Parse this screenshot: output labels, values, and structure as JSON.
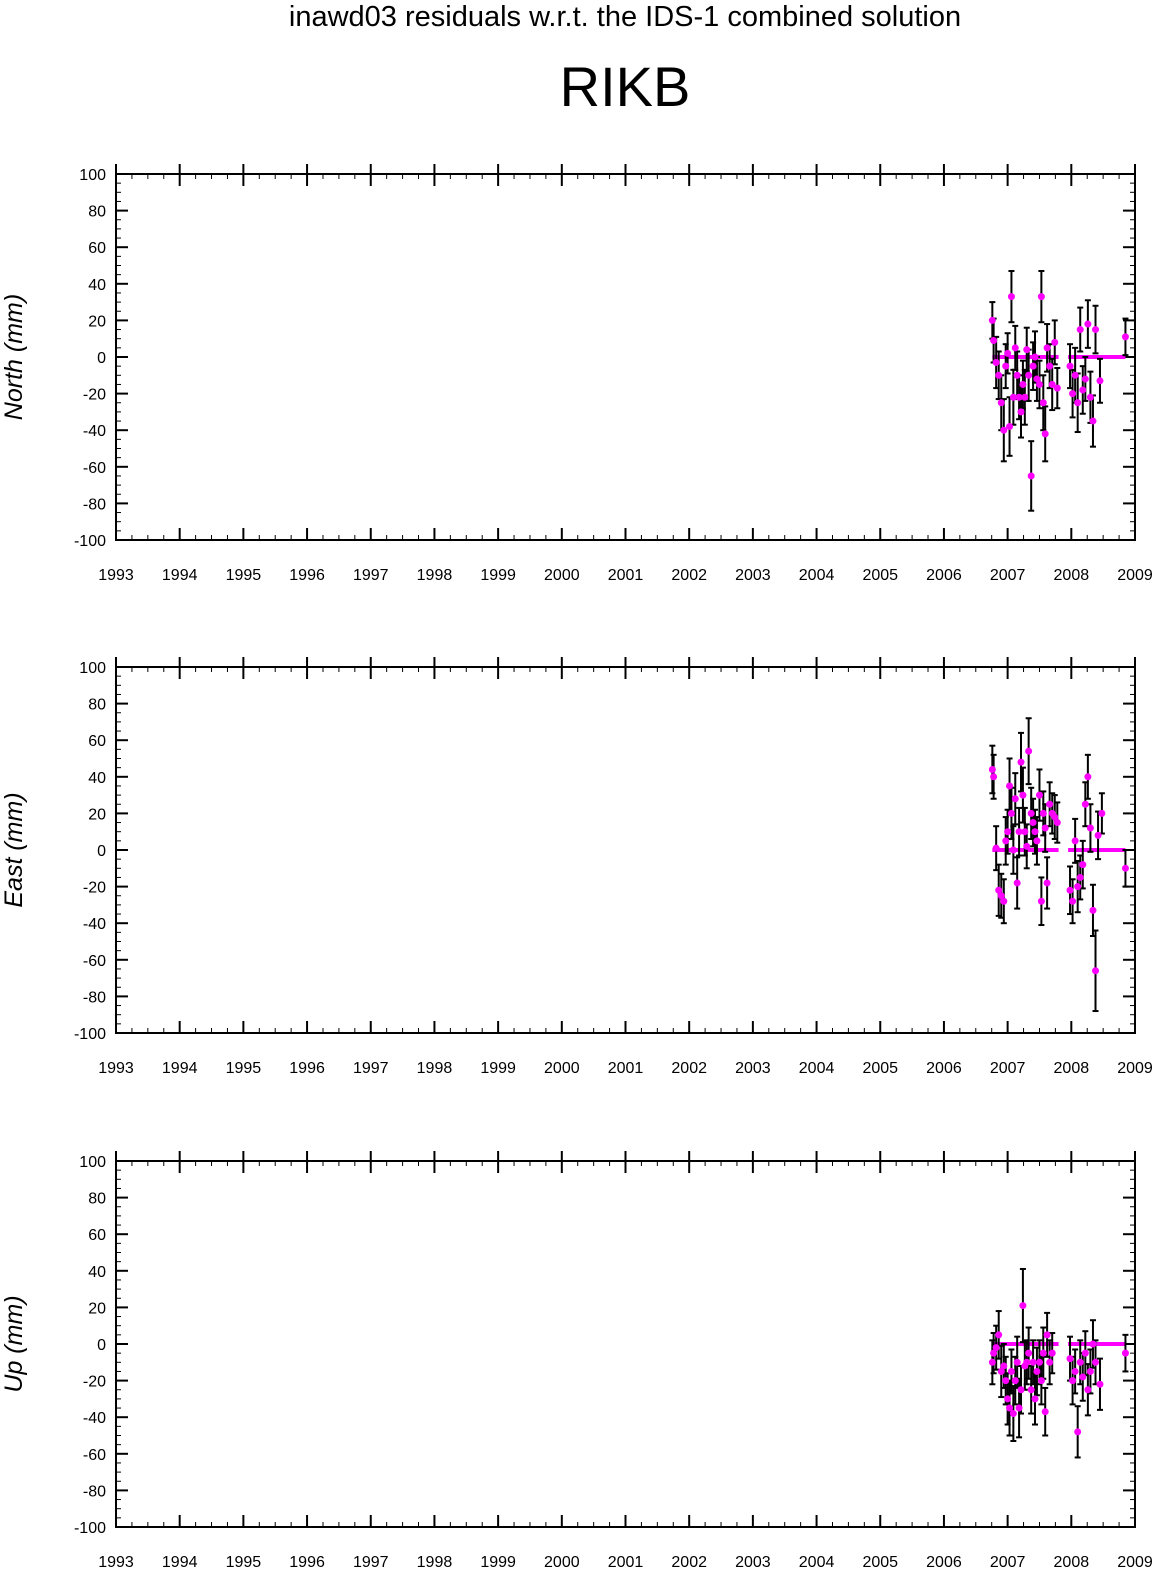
{
  "suptitle": "inawd03 residuals w.r.t. the IDS-1 combined solution",
  "title": "RIKB",
  "colors": {
    "marker": "#ff00ff",
    "errorbar": "#000000",
    "axis": "#000000"
  },
  "chart_data": [
    {
      "type": "scatter",
      "ylabel": "North (mm)",
      "xlabel": "",
      "xlim": [
        1993,
        2009
      ],
      "ylim": [
        -100,
        100
      ],
      "x_ticks": [
        "1993",
        "1994",
        "1995",
        "1996",
        "1997",
        "1998",
        "1999",
        "2000",
        "2001",
        "2002",
        "2003",
        "2004",
        "2005",
        "2006",
        "2007",
        "2008",
        "2009"
      ],
      "y_ticks": [
        "100",
        "80",
        "60",
        "40",
        "20",
        "0",
        "-20",
        "-40",
        "-60",
        "-80",
        "-100"
      ],
      "grid": false,
      "series": [
        {
          "values_with_error": true,
          "points": [
            [
              2006.76,
              20,
              10
            ],
            [
              2006.78,
              9,
              12
            ],
            [
              2006.82,
              -3,
              14
            ],
            [
              2006.86,
              -10,
              13
            ],
            [
              2006.9,
              -25,
              15
            ],
            [
              2006.94,
              -40,
              17
            ],
            [
              2006.97,
              -5,
              12
            ],
            [
              2007.0,
              2,
              11
            ],
            [
              2007.03,
              -38,
              16
            ],
            [
              2007.06,
              33,
              14
            ],
            [
              2007.09,
              -22,
              15
            ],
            [
              2007.12,
              5,
              12
            ],
            [
              2007.15,
              -10,
              13
            ],
            [
              2007.18,
              -22,
              12
            ],
            [
              2007.21,
              -30,
              14
            ],
            [
              2007.24,
              -15,
              13
            ],
            [
              2007.27,
              -22,
              15
            ],
            [
              2007.3,
              4,
              12
            ],
            [
              2007.33,
              -10,
              14
            ],
            [
              2007.37,
              -65,
              19
            ],
            [
              2007.4,
              -5,
              13
            ],
            [
              2007.43,
              0,
              14
            ],
            [
              2007.46,
              -12,
              12
            ],
            [
              2007.5,
              -15,
              13
            ],
            [
              2007.53,
              33,
              14
            ],
            [
              2007.56,
              -25,
              15
            ],
            [
              2007.59,
              -42,
              15
            ],
            [
              2007.62,
              5,
              13
            ],
            [
              2007.66,
              -5,
              12
            ],
            [
              2007.7,
              -15,
              14
            ],
            [
              2007.74,
              8,
              12
            ],
            [
              2007.78,
              -17,
              11
            ],
            [
              2007.98,
              -5,
              12
            ],
            [
              2008.02,
              -20,
              13
            ],
            [
              2008.06,
              -10,
              15
            ],
            [
              2008.1,
              -25,
              16
            ],
            [
              2008.14,
              15,
              12
            ],
            [
              2008.18,
              -18,
              13
            ],
            [
              2008.22,
              -12,
              12
            ],
            [
              2008.26,
              18,
              13
            ],
            [
              2008.3,
              -22,
              14
            ],
            [
              2008.34,
              -35,
              14
            ],
            [
              2008.38,
              15,
              13
            ],
            [
              2008.45,
              -13,
              12
            ],
            [
              2008.85,
              11,
              10
            ]
          ],
          "zero_line_segments": [
            [
              2006.76,
              2007.8
            ],
            [
              2007.95,
              2008.85
            ]
          ]
        }
      ]
    },
    {
      "type": "scatter",
      "ylabel": "East (mm)",
      "xlabel": "",
      "xlim": [
        1993,
        2009
      ],
      "ylim": [
        -100,
        100
      ],
      "x_ticks": [
        "1993",
        "1994",
        "1995",
        "1996",
        "1997",
        "1998",
        "1999",
        "2000",
        "2001",
        "2002",
        "2003",
        "2004",
        "2005",
        "2006",
        "2007",
        "2008",
        "2009"
      ],
      "y_ticks": [
        "100",
        "80",
        "60",
        "40",
        "20",
        "0",
        "-20",
        "-40",
        "-60",
        "-80",
        "-100"
      ],
      "grid": false,
      "series": [
        {
          "values_with_error": true,
          "points": [
            [
              2006.76,
              44,
              13
            ],
            [
              2006.78,
              40,
              12
            ],
            [
              2006.82,
              1,
              12
            ],
            [
              2006.86,
              -22,
              14
            ],
            [
              2006.9,
              -25,
              12
            ],
            [
              2006.94,
              -28,
              12
            ],
            [
              2006.97,
              5,
              13
            ],
            [
              2007.0,
              10,
              12
            ],
            [
              2007.03,
              35,
              15
            ],
            [
              2007.06,
              20,
              14
            ],
            [
              2007.09,
              0,
              13
            ],
            [
              2007.12,
              28,
              14
            ],
            [
              2007.15,
              -18,
              14
            ],
            [
              2007.18,
              10,
              13
            ],
            [
              2007.21,
              48,
              16
            ],
            [
              2007.24,
              30,
              15
            ],
            [
              2007.27,
              10,
              13
            ],
            [
              2007.3,
              2,
              12
            ],
            [
              2007.33,
              54,
              18
            ],
            [
              2007.37,
              20,
              14
            ],
            [
              2007.4,
              15,
              13
            ],
            [
              2007.43,
              10,
              12
            ],
            [
              2007.46,
              5,
              13
            ],
            [
              2007.5,
              30,
              14
            ],
            [
              2007.53,
              -28,
              13
            ],
            [
              2007.56,
              20,
              12
            ],
            [
              2007.59,
              12,
              13
            ],
            [
              2007.62,
              -18,
              14
            ],
            [
              2007.66,
              25,
              12
            ],
            [
              2007.7,
              20,
              11
            ],
            [
              2007.74,
              18,
              12
            ],
            [
              2007.78,
              15,
              11
            ],
            [
              2007.98,
              -22,
              13
            ],
            [
              2008.02,
              -28,
              12
            ],
            [
              2008.06,
              5,
              12
            ],
            [
              2008.1,
              -20,
              14
            ],
            [
              2008.14,
              -15,
              12
            ],
            [
              2008.18,
              -8,
              13
            ],
            [
              2008.22,
              25,
              12
            ],
            [
              2008.26,
              40,
              12
            ],
            [
              2008.3,
              12,
              13
            ],
            [
              2008.34,
              -33,
              14
            ],
            [
              2008.38,
              -66,
              22
            ],
            [
              2008.42,
              8,
              13
            ],
            [
              2008.48,
              20,
              11
            ],
            [
              2008.85,
              -10,
              10
            ]
          ],
          "zero_line_segments": [
            [
              2006.76,
              2007.8
            ],
            [
              2007.95,
              2008.85
            ]
          ]
        }
      ]
    },
    {
      "type": "scatter",
      "ylabel": "Up (mm)",
      "xlabel": "",
      "xlim": [
        1993,
        2009
      ],
      "ylim": [
        -100,
        100
      ],
      "x_ticks": [
        "1993",
        "1994",
        "1995",
        "1996",
        "1997",
        "1998",
        "1999",
        "2000",
        "2001",
        "2002",
        "2003",
        "2004",
        "2005",
        "2006",
        "2007",
        "2008",
        "2009"
      ],
      "y_ticks": [
        "100",
        "80",
        "60",
        "40",
        "20",
        "0",
        "-20",
        "-40",
        "-60",
        "-80",
        "-100"
      ],
      "grid": false,
      "series": [
        {
          "values_with_error": true,
          "points": [
            [
              2006.76,
              -10,
              12
            ],
            [
              2006.78,
              -5,
              11
            ],
            [
              2006.82,
              -2,
              12
            ],
            [
              2006.86,
              5,
              13
            ],
            [
              2006.9,
              -15,
              14
            ],
            [
              2006.94,
              -12,
              12
            ],
            [
              2006.97,
              -20,
              13
            ],
            [
              2007.0,
              -30,
              14
            ],
            [
              2007.03,
              -35,
              15
            ],
            [
              2007.06,
              -15,
              12
            ],
            [
              2007.09,
              -38,
              15
            ],
            [
              2007.12,
              -20,
              13
            ],
            [
              2007.15,
              -10,
              14
            ],
            [
              2007.18,
              -35,
              16
            ],
            [
              2007.21,
              -25,
              13
            ],
            [
              2007.24,
              21,
              20
            ],
            [
              2007.27,
              -12,
              13
            ],
            [
              2007.3,
              -10,
              12
            ],
            [
              2007.33,
              -5,
              14
            ],
            [
              2007.37,
              -25,
              13
            ],
            [
              2007.4,
              -10,
              12
            ],
            [
              2007.43,
              -30,
              14
            ],
            [
              2007.46,
              -15,
              13
            ],
            [
              2007.5,
              -10,
              12
            ],
            [
              2007.53,
              -20,
              13
            ],
            [
              2007.56,
              -5,
              14
            ],
            [
              2007.59,
              -37,
              13
            ],
            [
              2007.62,
              5,
              12
            ],
            [
              2007.66,
              -10,
              12
            ],
            [
              2007.7,
              -5,
              11
            ],
            [
              2007.98,
              -8,
              12
            ],
            [
              2008.02,
              -20,
              13
            ],
            [
              2008.06,
              -15,
              12
            ],
            [
              2008.1,
              -48,
              14
            ],
            [
              2008.14,
              -10,
              12
            ],
            [
              2008.18,
              -18,
              13
            ],
            [
              2008.22,
              -5,
              12
            ],
            [
              2008.26,
              -25,
              14
            ],
            [
              2008.3,
              -15,
              12
            ],
            [
              2008.34,
              0,
              13
            ],
            [
              2008.38,
              -10,
              12
            ],
            [
              2008.45,
              -22,
              14
            ],
            [
              2008.85,
              -5,
              10
            ]
          ],
          "zero_line_segments": [
            [
              2006.76,
              2007.8
            ],
            [
              2007.95,
              2008.85
            ]
          ]
        }
      ]
    }
  ]
}
